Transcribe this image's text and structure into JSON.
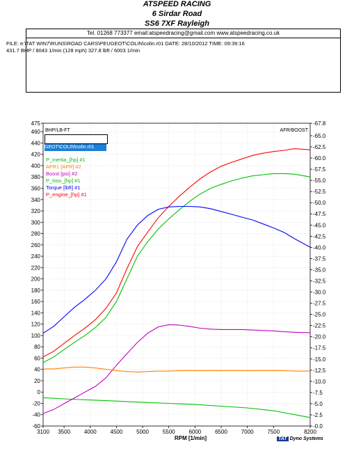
{
  "header": {
    "line1": "ATSPEED RACING",
    "line2": "6 Sirdar Road",
    "line3": "SS6 7XF Rayleigh",
    "contact": "Tel. 01268 773377   email:atspeedracing@gmail.com   www.atspeedracing.co.uk"
  },
  "run": {
    "file_line": "FILE: e:\\TAT WIN7\\RUNS\\ROAD CARS\\PEUGEOT\\COLIN\\colin.r01  DATE: 28/10/2012  TIME: 09:39:16",
    "peak_line": "431.7 BHP / 8043 1/min (128 mph)    327.8 lbft / 6003 1/min"
  },
  "legend": {
    "selected": "GEOT\\COLIN\\colin.r01",
    "items": [
      {
        "label": "P_inertia_[hp] #1",
        "color": "#00c000"
      },
      {
        "label": "AFR1  [AFR] #2",
        "color": "#ff8000"
      },
      {
        "label": "Boost  [psi] #2",
        "color": "#c000c0"
      },
      {
        "label": "P_loss_[hp] #1",
        "color": "#00c000"
      },
      {
        "label": "Torque  [lbft] #1",
        "color": "#0000ff"
      },
      {
        "label": "P_engine_[hp] #1",
        "color": "#ff0000"
      }
    ]
  },
  "footer": {
    "badge": "TAT",
    "text": "Dyno Systems"
  },
  "chart_data": {
    "type": "line",
    "xlabel": "RPM  [1/min]",
    "left_axis_label": "BHP/LB-FT",
    "right_axis_label": "AFR/BOOST",
    "xlim": [
      3100,
      8200
    ],
    "x_ticks": [
      3100,
      3500,
      4000,
      4500,
      5000,
      5500,
      6000,
      6500,
      7000,
      7500,
      8200
    ],
    "y_left_lim": [
      -60,
      475
    ],
    "y_left_ticks": [
      475,
      460,
      440,
      420,
      400,
      380,
      360,
      340,
      320,
      300,
      280,
      260,
      240,
      220,
      200,
      180,
      160,
      140,
      120,
      100,
      80,
      60,
      40,
      20,
      0,
      -20,
      -40,
      -60
    ],
    "y_right_lim": [
      0.0,
      67.8
    ],
    "y_right_ticks": [
      "67.8",
      "65.0",
      "62.5",
      "60.0",
      "57.5",
      "55.0",
      "52.5",
      "50.0",
      "47.5",
      "45.0",
      "42.5",
      "40.0",
      "37.5",
      "35.0",
      "32.5",
      "30.0",
      "27.5",
      "25.0",
      "22.5",
      "20.0",
      "17.5",
      "15.0",
      "12.5",
      "10.0",
      "7.5",
      "5.0",
      "2.5",
      "0.0"
    ],
    "grid": true,
    "series": [
      {
        "name": "P_engine_[hp] #1",
        "axis": "left",
        "color": "#ff0000",
        "x": [
          3100,
          3300,
          3500,
          3700,
          3900,
          4100,
          4300,
          4500,
          4700,
          4900,
          5100,
          5300,
          5500,
          5700,
          5900,
          6100,
          6300,
          6500,
          6700,
          6900,
          7100,
          7300,
          7500,
          7700,
          7900,
          8200
        ],
        "y": [
          62,
          72,
          86,
          100,
          113,
          128,
          148,
          175,
          218,
          257,
          283,
          308,
          328,
          346,
          362,
          377,
          389,
          399,
          406,
          412,
          418,
          422,
          425,
          427,
          430,
          428
        ]
      },
      {
        "name": "P_inertia_[hp] #1",
        "axis": "left",
        "color": "#00c000",
        "x": [
          3100,
          3300,
          3500,
          3700,
          3900,
          4100,
          4300,
          4500,
          4700,
          4900,
          5100,
          5300,
          5500,
          5700,
          5900,
          6100,
          6300,
          6500,
          6700,
          6900,
          7100,
          7300,
          7500,
          7700,
          7900,
          8200
        ],
        "y": [
          52,
          62,
          75,
          88,
          100,
          114,
          132,
          160,
          200,
          240,
          266,
          288,
          306,
          322,
          337,
          350,
          360,
          367,
          373,
          378,
          382,
          384,
          386,
          386,
          385,
          380
        ]
      },
      {
        "name": "Torque  [lbft] #1",
        "axis": "left",
        "color": "#0000ff",
        "x": [
          3100,
          3300,
          3500,
          3700,
          3900,
          4100,
          4300,
          4500,
          4700,
          4900,
          5100,
          5300,
          5500,
          5700,
          5900,
          6100,
          6300,
          6500,
          6700,
          6900,
          7100,
          7300,
          7500,
          7700,
          7900,
          8200
        ],
        "y": [
          104,
          116,
          133,
          150,
          164,
          180,
          200,
          230,
          270,
          295,
          312,
          323,
          327,
          328,
          328,
          327,
          324,
          319,
          314,
          309,
          304,
          297,
          290,
          282,
          271,
          256
        ]
      },
      {
        "name": "P_loss_[hp] #1",
        "axis": "left",
        "color": "#00c000",
        "x": [
          3100,
          3500,
          4000,
          4500,
          5000,
          5500,
          6000,
          6500,
          7000,
          7500,
          8200
        ],
        "y": [
          -10,
          -12,
          -14,
          -16,
          -18,
          -20,
          -22,
          -25,
          -28,
          -33,
          -45
        ]
      },
      {
        "name": "Boost  [psi] #2",
        "axis": "right",
        "color": "#c000c0",
        "x": [
          3100,
          3300,
          3500,
          3700,
          3900,
          4100,
          4300,
          4500,
          4700,
          4900,
          5100,
          5300,
          5500,
          5700,
          5900,
          6100,
          6300,
          6500,
          6700,
          6900,
          7100,
          7300,
          7500,
          7700,
          7900,
          8200
        ],
        "y": [
          2.8,
          3.7,
          5.0,
          6.3,
          7.6,
          8.9,
          10.8,
          13.6,
          16.2,
          18.7,
          20.8,
          22.2,
          22.7,
          22.6,
          22.3,
          21.9,
          21.7,
          21.6,
          21.6,
          21.6,
          21.5,
          21.4,
          21.3,
          21.1,
          21.0,
          20.9
        ]
      },
      {
        "name": "AFR1  [AFR] #2",
        "axis": "right",
        "color": "#ff8000",
        "x": [
          3100,
          3300,
          3500,
          3700,
          3900,
          4100,
          4300,
          4500,
          4700,
          4900,
          5100,
          5300,
          5500,
          5700,
          5900,
          6100,
          6300,
          6500,
          6700,
          6900,
          7100,
          7300,
          7500,
          7700,
          7900,
          8200
        ],
        "y": [
          12.8,
          12.8,
          13.0,
          13.2,
          13.2,
          13.0,
          12.7,
          12.4,
          12.2,
          12.1,
          12.2,
          12.3,
          12.3,
          12.4,
          12.4,
          12.4,
          12.4,
          12.4,
          12.4,
          12.4,
          12.4,
          12.4,
          12.4,
          12.4,
          12.3,
          12.3
        ]
      }
    ]
  }
}
